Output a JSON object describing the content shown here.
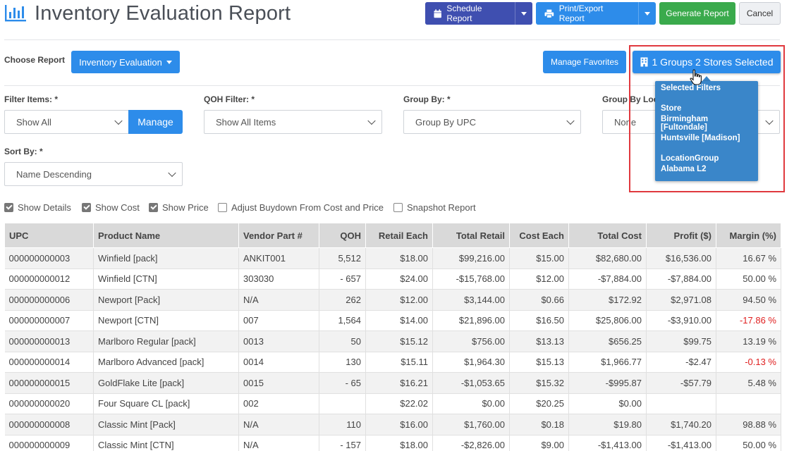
{
  "header": {
    "title": "Inventory Evaluation Report",
    "schedule_label": "Schedule Report",
    "print_label": "Print/Export Report",
    "generate_label": "Generate Report",
    "cancel_label": "Cancel"
  },
  "report": {
    "choose_label": "Choose Report",
    "choose_value": "Inventory Evaluation",
    "favorites_label": "Manage Favorites",
    "groups_label": "1 Groups 2 Stores Selected"
  },
  "filters": {
    "filter_items_label": "Filter Items: *",
    "filter_items_value": "Show All",
    "manage_label": "Manage",
    "qoh_label": "QOH Filter: *",
    "qoh_value": "Show All Items",
    "group_by_label": "Group By: *",
    "group_by_value": "Group By UPC",
    "group_loc_label": "Group By Location: *",
    "group_loc_value": "None",
    "sort_label": "Sort By: *",
    "sort_value": "Name Descending"
  },
  "options": [
    {
      "label": "Show Details",
      "checked": true
    },
    {
      "label": "Show Cost",
      "checked": true
    },
    {
      "label": "Show Price",
      "checked": true
    },
    {
      "label": "Adjust Buydown From Cost and Price",
      "checked": false
    },
    {
      "label": "Snapshot Report",
      "checked": false
    }
  ],
  "popup": {
    "title": "Selected Filters",
    "store_heading": "Store",
    "stores": [
      "Birmingham [Fultondale]",
      "Huntsville [Madison]"
    ],
    "group_heading": "LocationGroup",
    "groups": [
      "Alabama L2"
    ]
  },
  "table": {
    "headers": [
      "UPC",
      "Product Name",
      "Vendor Part #",
      "QOH",
      "Retail Each",
      "Total Retail",
      "Cost Each",
      "Total Cost",
      "Profit ($)",
      "Margin (%)"
    ],
    "rows": [
      [
        "000000000003",
        "Winfield [pack]",
        "ANKIT001",
        "5,512",
        "$18.00",
        "$99,216.00",
        "$15.00",
        "$82,680.00",
        "$16,536.00",
        "16.67 %"
      ],
      [
        "000000000012",
        "Winfield [CTN]",
        "303030",
        "- 657",
        "$24.00",
        "-$15,768.00",
        "$12.00",
        "-$7,884.00",
        "-$7,884.00",
        "50.00 %"
      ],
      [
        "000000000006",
        "Newport [Pack]",
        "N/A",
        "262",
        "$12.00",
        "$3,144.00",
        "$0.66",
        "$172.92",
        "$2,971.08",
        "94.50 %"
      ],
      [
        "000000000007",
        "Newport [CTN]",
        "007",
        "1,564",
        "$14.00",
        "$21,896.00",
        "$16.50",
        "$25,806.00",
        "-$3,910.00",
        "-17.86 %"
      ],
      [
        "000000000013",
        "Marlboro Regular [pack]",
        "0013",
        "50",
        "$15.12",
        "$756.00",
        "$13.13",
        "$656.25",
        "$99.75",
        "13.19 %"
      ],
      [
        "000000000014",
        "Marlboro Advanced [pack]",
        "0014",
        "130",
        "$15.11",
        "$1,964.30",
        "$15.13",
        "$1,966.77",
        "-$2.47",
        "-0.13 %"
      ],
      [
        "000000000015",
        "GoldFlake Lite [pack]",
        "0015",
        "- 65",
        "$16.21",
        "-$1,053.65",
        "$15.32",
        "-$995.87",
        "-$57.79",
        "5.48 %"
      ],
      [
        "000000000020",
        "Four Square CL [pack]",
        "002",
        "",
        "$22.02",
        "$0.00",
        "$20.25",
        "$0.00",
        "",
        ""
      ],
      [
        "000000000008",
        "Classic Mint [Pack]",
        "N/A",
        "110",
        "$16.00",
        "$1,760.00",
        "$0.18",
        "$19.80",
        "$1,740.20",
        "98.88 %"
      ],
      [
        "000000000009",
        "Classic Mint [CTN]",
        "N/A",
        "- 157",
        "$18.00",
        "-$2,826.00",
        "$9.00",
        "-$1,413.00",
        "-$1,413.00",
        "50.00 %"
      ]
    ]
  },
  "colors": {
    "primary": "#2d8cea",
    "schedule": "#3f4fb0",
    "generate": "#3aaa4c",
    "negative_margin": "#e02020",
    "popup": "#3a86c9",
    "highlight": "#e0393e"
  }
}
